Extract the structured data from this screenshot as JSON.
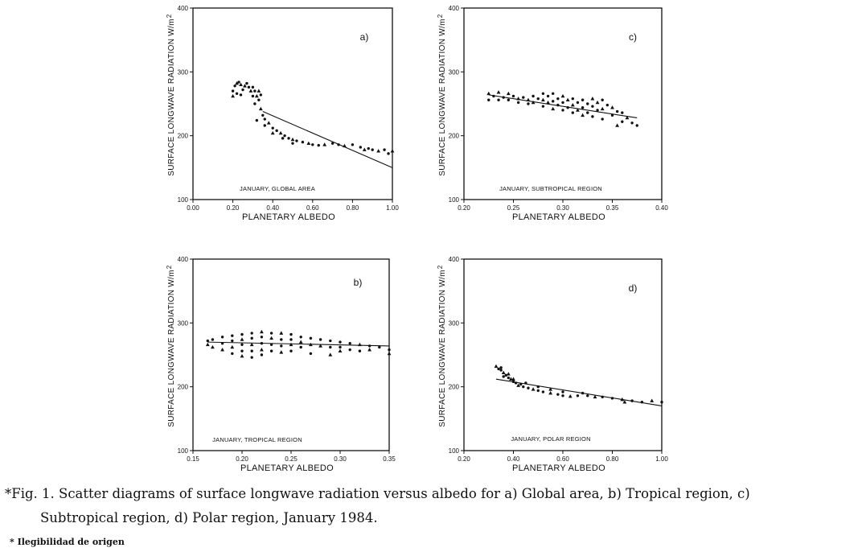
{
  "chart_data": [
    {
      "id": "a",
      "type": "scatter",
      "panel_label": "a)",
      "annotation": "JANUARY, GLOBAL AREA",
      "xlabel": "PLANETARY ALBEDO",
      "ylabel": "SURFACE LONGWAVE RADIATION W/m",
      "ylabel_sup": "2",
      "xlim": [
        0.0,
        1.0
      ],
      "ylim": [
        100,
        400
      ],
      "xticks": [
        "0.00",
        "0.20",
        "0.40",
        "0.60",
        "0.80",
        "1.00"
      ],
      "yticks": [
        "100",
        "200",
        "300",
        "400"
      ],
      "regression_line": [
        [
          0.35,
          238
        ],
        [
          1.0,
          150
        ]
      ],
      "points": [
        [
          0.2,
          262
        ],
        [
          0.2,
          270
        ],
        [
          0.21,
          278
        ],
        [
          0.22,
          282
        ],
        [
          0.22,
          266
        ],
        [
          0.23,
          284
        ],
        [
          0.24,
          280
        ],
        [
          0.25,
          272
        ],
        [
          0.24,
          264
        ],
        [
          0.26,
          278
        ],
        [
          0.27,
          282
        ],
        [
          0.28,
          276
        ],
        [
          0.29,
          270
        ],
        [
          0.3,
          276
        ],
        [
          0.31,
          270
        ],
        [
          0.32,
          262
        ],
        [
          0.33,
          256
        ],
        [
          0.34,
          264
        ],
        [
          0.33,
          270
        ],
        [
          0.3,
          262
        ],
        [
          0.31,
          250
        ],
        [
          0.34,
          242
        ],
        [
          0.35,
          232
        ],
        [
          0.36,
          226
        ],
        [
          0.38,
          220
        ],
        [
          0.4,
          212
        ],
        [
          0.42,
          208
        ],
        [
          0.44,
          204
        ],
        [
          0.46,
          200
        ],
        [
          0.48,
          196
        ],
        [
          0.5,
          194
        ],
        [
          0.52,
          192
        ],
        [
          0.55,
          190
        ],
        [
          0.58,
          188
        ],
        [
          0.6,
          186
        ],
        [
          0.63,
          185
        ],
        [
          0.66,
          186
        ],
        [
          0.7,
          188
        ],
        [
          0.73,
          186
        ],
        [
          0.76,
          184
        ],
        [
          0.8,
          186
        ],
        [
          0.84,
          182
        ],
        [
          0.86,
          178
        ],
        [
          0.88,
          180
        ],
        [
          0.9,
          178
        ],
        [
          0.93,
          176
        ],
        [
          0.96,
          178
        ],
        [
          0.98,
          172
        ],
        [
          1.0,
          176
        ],
        [
          0.32,
          224
        ],
        [
          0.36,
          216
        ],
        [
          0.4,
          204
        ],
        [
          0.45,
          196
        ],
        [
          0.5,
          188
        ]
      ]
    },
    {
      "id": "b",
      "type": "scatter",
      "panel_label": "b)",
      "annotation": "JANUARY, TROPICAL REGION",
      "xlabel": "PLANETARY ALBEDO",
      "ylabel": "SURFACE LONGWAVE RADIATION W/m",
      "ylabel_sup": "2",
      "xlim": [
        0.15,
        0.35
      ],
      "ylim": [
        100,
        400
      ],
      "xticks": [
        "0.15",
        "0.20",
        "0.25",
        "0.30",
        "0.35"
      ],
      "yticks": [
        "100",
        "200",
        "300",
        "400"
      ],
      "regression_line": [
        [
          0.165,
          270
        ],
        [
          0.35,
          264
        ]
      ],
      "points": [
        [
          0.165,
          266
        ],
        [
          0.165,
          272
        ],
        [
          0.17,
          274
        ],
        [
          0.17,
          262
        ],
        [
          0.18,
          278
        ],
        [
          0.18,
          268
        ],
        [
          0.18,
          258
        ],
        [
          0.19,
          280
        ],
        [
          0.19,
          272
        ],
        [
          0.19,
          262
        ],
        [
          0.19,
          252
        ],
        [
          0.2,
          282
        ],
        [
          0.2,
          274
        ],
        [
          0.2,
          266
        ],
        [
          0.2,
          256
        ],
        [
          0.2,
          248
        ],
        [
          0.21,
          284
        ],
        [
          0.21,
          276
        ],
        [
          0.21,
          266
        ],
        [
          0.21,
          256
        ],
        [
          0.21,
          246
        ],
        [
          0.22,
          286
        ],
        [
          0.22,
          278
        ],
        [
          0.22,
          268
        ],
        [
          0.22,
          258
        ],
        [
          0.22,
          250
        ],
        [
          0.23,
          284
        ],
        [
          0.23,
          276
        ],
        [
          0.23,
          266
        ],
        [
          0.23,
          256
        ],
        [
          0.24,
          284
        ],
        [
          0.24,
          274
        ],
        [
          0.24,
          264
        ],
        [
          0.24,
          254
        ],
        [
          0.25,
          282
        ],
        [
          0.25,
          274
        ],
        [
          0.25,
          266
        ],
        [
          0.25,
          256
        ],
        [
          0.26,
          278
        ],
        [
          0.26,
          270
        ],
        [
          0.26,
          262
        ],
        [
          0.27,
          276
        ],
        [
          0.27,
          266
        ],
        [
          0.27,
          252
        ],
        [
          0.28,
          274
        ],
        [
          0.28,
          264
        ],
        [
          0.29,
          272
        ],
        [
          0.29,
          262
        ],
        [
          0.29,
          250
        ],
        [
          0.3,
          270
        ],
        [
          0.3,
          262
        ],
        [
          0.3,
          256
        ],
        [
          0.31,
          268
        ],
        [
          0.31,
          258
        ],
        [
          0.32,
          266
        ],
        [
          0.32,
          256
        ],
        [
          0.33,
          264
        ],
        [
          0.33,
          258
        ],
        [
          0.34,
          262
        ],
        [
          0.35,
          258
        ],
        [
          0.35,
          252
        ]
      ]
    },
    {
      "id": "c",
      "type": "scatter",
      "panel_label": "c)",
      "annotation": "JANUARY, SUBTROPICAL REGION",
      "xlabel": "PLANETARY ALBEDO",
      "ylabel": "SURFACE LONGWAVE RADIATION W/m",
      "ylabel_sup": "2",
      "xlim": [
        0.2,
        0.4
      ],
      "ylim": [
        100,
        400
      ],
      "xticks": [
        "0.20",
        "0.25",
        "0.30",
        "0.35",
        "0.40"
      ],
      "yticks": [
        "100",
        "200",
        "300",
        "400"
      ],
      "regression_line": [
        [
          0.225,
          264
        ],
        [
          0.375,
          228
        ]
      ],
      "points": [
        [
          0.225,
          266
        ],
        [
          0.225,
          256
        ],
        [
          0.23,
          262
        ],
        [
          0.235,
          268
        ],
        [
          0.235,
          256
        ],
        [
          0.24,
          260
        ],
        [
          0.245,
          266
        ],
        [
          0.245,
          256
        ],
        [
          0.25,
          262
        ],
        [
          0.255,
          258
        ],
        [
          0.255,
          252
        ],
        [
          0.26,
          260
        ],
        [
          0.265,
          256
        ],
        [
          0.265,
          250
        ],
        [
          0.27,
          262
        ],
        [
          0.27,
          252
        ],
        [
          0.275,
          258
        ],
        [
          0.28,
          266
        ],
        [
          0.28,
          256
        ],
        [
          0.28,
          246
        ],
        [
          0.285,
          262
        ],
        [
          0.285,
          252
        ],
        [
          0.29,
          266
        ],
        [
          0.29,
          254
        ],
        [
          0.29,
          242
        ],
        [
          0.295,
          258
        ],
        [
          0.295,
          248
        ],
        [
          0.3,
          262
        ],
        [
          0.3,
          252
        ],
        [
          0.3,
          240
        ],
        [
          0.305,
          256
        ],
        [
          0.305,
          244
        ],
        [
          0.31,
          258
        ],
        [
          0.31,
          248
        ],
        [
          0.31,
          236
        ],
        [
          0.315,
          252
        ],
        [
          0.315,
          240
        ],
        [
          0.32,
          256
        ],
        [
          0.32,
          244
        ],
        [
          0.32,
          232
        ],
        [
          0.325,
          250
        ],
        [
          0.325,
          236
        ],
        [
          0.33,
          258
        ],
        [
          0.33,
          246
        ],
        [
          0.33,
          230
        ],
        [
          0.335,
          252
        ],
        [
          0.335,
          240
        ],
        [
          0.34,
          256
        ],
        [
          0.34,
          242
        ],
        [
          0.34,
          226
        ],
        [
          0.345,
          248
        ],
        [
          0.35,
          244
        ],
        [
          0.35,
          232
        ],
        [
          0.355,
          238
        ],
        [
          0.355,
          216
        ],
        [
          0.36,
          236
        ],
        [
          0.36,
          222
        ],
        [
          0.365,
          228
        ],
        [
          0.37,
          220
        ],
        [
          0.375,
          216
        ]
      ]
    },
    {
      "id": "d",
      "type": "scatter",
      "panel_label": "d)",
      "annotation": "JANUARY, POLAR REGION",
      "xlabel": "PLANETARY ALBEDO",
      "ylabel": "SURFACE LONGWAVE RADIATION W/m",
      "ylabel_sup": "2",
      "xlim": [
        0.2,
        1.0
      ],
      "ylim": [
        100,
        400
      ],
      "xticks": [
        "0.20",
        "0.40",
        "0.60",
        "0.80",
        "1.00"
      ],
      "yticks": [
        "100",
        "200",
        "300",
        "400"
      ],
      "regression_line": [
        [
          0.33,
          212
        ],
        [
          1.0,
          170
        ]
      ],
      "points": [
        [
          0.33,
          232
        ],
        [
          0.34,
          228
        ],
        [
          0.35,
          226
        ],
        [
          0.36,
          222
        ],
        [
          0.37,
          218
        ],
        [
          0.38,
          214
        ],
        [
          0.39,
          212
        ],
        [
          0.4,
          208
        ],
        [
          0.41,
          206
        ],
        [
          0.42,
          202
        ],
        [
          0.44,
          200
        ],
        [
          0.46,
          198
        ],
        [
          0.48,
          196
        ],
        [
          0.5,
          194
        ],
        [
          0.52,
          192
        ],
        [
          0.55,
          190
        ],
        [
          0.58,
          188
        ],
        [
          0.6,
          186
        ],
        [
          0.63,
          185
        ],
        [
          0.66,
          186
        ],
        [
          0.7,
          186
        ],
        [
          0.73,
          184
        ],
        [
          0.76,
          184
        ],
        [
          0.8,
          182
        ],
        [
          0.84,
          180
        ],
        [
          0.88,
          178
        ],
        [
          0.92,
          176
        ],
        [
          0.96,
          178
        ],
        [
          1.0,
          176
        ],
        [
          0.36,
          216
        ],
        [
          0.4,
          212
        ],
        [
          0.45,
          206
        ],
        [
          0.5,
          200
        ],
        [
          0.55,
          196
        ],
        [
          0.6,
          192
        ],
        [
          0.35,
          230
        ],
        [
          0.38,
          220
        ],
        [
          0.43,
          204
        ],
        [
          0.68,
          190
        ],
        [
          0.85,
          176
        ]
      ]
    }
  ],
  "caption": {
    "line1": "*Fig.  1.  Scatter diagrams of surface longwave radiation versus albedo for a) Global area, b) Tropical region, c)",
    "line2": "Subtropical region, d) Polar region, January 1984."
  },
  "footnote": "* Ilegibilidad de origen"
}
